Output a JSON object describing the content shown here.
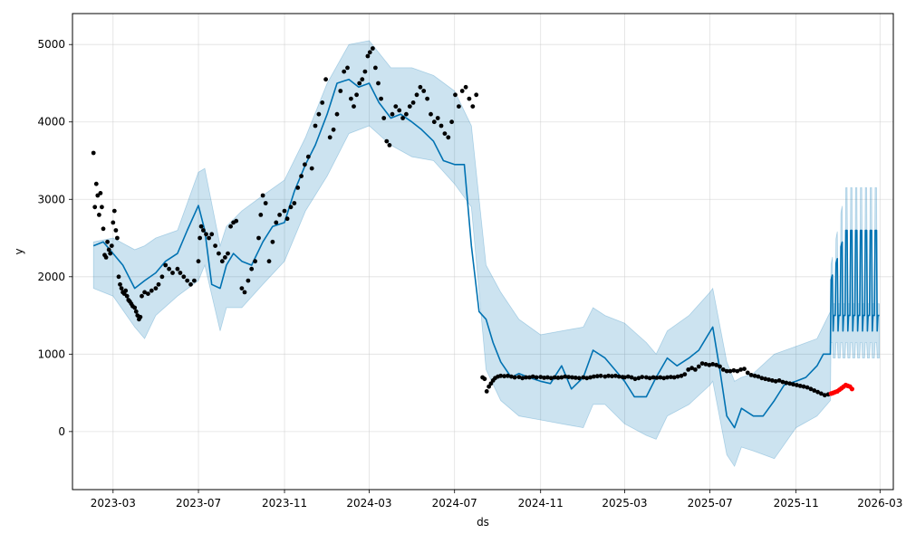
{
  "chart_data": {
    "type": "line",
    "title": "",
    "xlabel": "ds",
    "ylabel": "y",
    "xlim": [
      "2023-01-02",
      "2026-03-20"
    ],
    "ylim": [
      -750,
      5400
    ],
    "grid": true,
    "x_ticks": [
      {
        "date": "2023-03-01",
        "label": "2023-03"
      },
      {
        "date": "2023-07-01",
        "label": "2023-07"
      },
      {
        "date": "2023-11-01",
        "label": "2023-11"
      },
      {
        "date": "2024-03-01",
        "label": "2024-03"
      },
      {
        "date": "2024-07-01",
        "label": "2024-07"
      },
      {
        "date": "2024-11-01",
        "label": "2024-11"
      },
      {
        "date": "2025-03-01",
        "label": "2025-03"
      },
      {
        "date": "2025-07-01",
        "label": "2025-07"
      },
      {
        "date": "2025-11-01",
        "label": "2025-11"
      },
      {
        "date": "2026-03-01",
        "label": "2026-03"
      }
    ],
    "y_ticks": [
      {
        "value": 0,
        "label": "0"
      },
      {
        "value": 1000,
        "label": "1000"
      },
      {
        "value": 2000,
        "label": "2000"
      },
      {
        "value": 3000,
        "label": "3000"
      },
      {
        "value": 4000,
        "label": "4000"
      },
      {
        "value": 5000,
        "label": "5000"
      }
    ],
    "colors": {
      "forecast": "#0072b2",
      "band": "#0072b2",
      "actual": "#000000",
      "test": "#ff0000",
      "grid": "#cccccc"
    },
    "forecast": {
      "x": [
        "2023-02-01",
        "2023-02-15",
        "2023-03-01",
        "2023-03-15",
        "2023-04-01",
        "2023-04-15",
        "2023-05-01",
        "2023-05-15",
        "2023-06-01",
        "2023-06-15",
        "2023-07-01",
        "2023-07-10",
        "2023-07-20",
        "2023-08-01",
        "2023-08-10",
        "2023-08-20",
        "2023-09-01",
        "2023-09-15",
        "2023-10-01",
        "2023-10-15",
        "2023-11-01",
        "2023-11-15",
        "2023-12-01",
        "2023-12-15",
        "2024-01-01",
        "2024-01-15",
        "2024-02-01",
        "2024-02-15",
        "2024-03-01",
        "2024-03-15",
        "2024-04-01",
        "2024-04-15",
        "2024-05-01",
        "2024-05-15",
        "2024-06-01",
        "2024-06-15",
        "2024-07-01",
        "2024-07-15",
        "2024-07-25",
        "2024-08-05",
        "2024-08-15",
        "2024-08-25",
        "2024-09-05",
        "2024-09-20",
        "2024-10-01",
        "2024-10-15",
        "2024-11-01",
        "2024-11-15",
        "2024-12-01",
        "2024-12-15",
        "2025-01-01",
        "2025-01-15",
        "2025-02-01",
        "2025-02-15",
        "2025-03-01",
        "2025-03-15",
        "2025-04-01",
        "2025-04-15",
        "2025-05-01",
        "2025-05-15",
        "2025-06-01",
        "2025-06-15",
        "2025-06-25",
        "2025-07-05",
        "2025-07-15",
        "2025-07-25",
        "2025-08-05",
        "2025-08-15",
        "2025-09-01",
        "2025-09-15",
        "2025-10-01",
        "2025-10-15",
        "2025-11-01",
        "2025-11-15",
        "2025-12-01",
        "2025-12-10",
        "2025-12-20"
      ],
      "y": [
        2400,
        2450,
        2300,
        2150,
        1850,
        1950,
        2050,
        2200,
        2300,
        2600,
        2920,
        2600,
        1900,
        1850,
        2150,
        2300,
        2200,
        2150,
        2450,
        2650,
        2700,
        3100,
        3450,
        3700,
        4100,
        4500,
        4550,
        4450,
        4500,
        4250,
        4050,
        4100,
        4000,
        3900,
        3750,
        3500,
        3450,
        3450,
        2400,
        1550,
        1450,
        1150,
        900,
        700,
        750,
        700,
        650,
        620,
        850,
        550,
        700,
        1050,
        950,
        800,
        650,
        450,
        450,
        700,
        950,
        850,
        950,
        1050,
        1200,
        1350,
        800,
        200,
        50,
        300,
        200,
        200,
        400,
        600,
        650,
        700,
        850,
        1000,
        1000
      ]
    },
    "band": {
      "x": [
        "2023-02-01",
        "2023-03-01",
        "2023-04-01",
        "2023-04-15",
        "2023-05-01",
        "2023-06-01",
        "2023-07-01",
        "2023-07-10",
        "2023-08-01",
        "2023-08-10",
        "2023-09-01",
        "2023-10-01",
        "2023-11-01",
        "2023-12-01",
        "2024-01-01",
        "2024-02-01",
        "2024-03-01",
        "2024-04-01",
        "2024-05-01",
        "2024-06-01",
        "2024-07-01",
        "2024-07-25",
        "2024-08-15",
        "2024-09-05",
        "2024-10-01",
        "2024-11-01",
        "2024-12-01",
        "2025-01-01",
        "2025-01-15",
        "2025-02-01",
        "2025-03-01",
        "2025-04-01",
        "2025-04-15",
        "2025-05-01",
        "2025-06-01",
        "2025-07-01",
        "2025-07-05",
        "2025-07-25",
        "2025-08-05",
        "2025-08-15",
        "2025-09-01",
        "2025-10-01",
        "2025-11-01",
        "2025-12-01",
        "2025-12-20"
      ],
      "lower": [
        1850,
        1750,
        1350,
        1200,
        1500,
        1750,
        1950,
        2150,
        1300,
        1600,
        1600,
        1900,
        2200,
        2850,
        3300,
        3850,
        3950,
        3700,
        3550,
        3500,
        3200,
        2900,
        800,
        400,
        200,
        150,
        100,
        50,
        350,
        350,
        100,
        -50,
        -100,
        200,
        350,
        600,
        650,
        -300,
        -450,
        -200,
        -250,
        -350,
        50,
        200,
        400
      ],
      "upper": [
        2450,
        2500,
        2350,
        2400,
        2500,
        2600,
        3350,
        3400,
        2400,
        2650,
        2850,
        3050,
        3250,
        3800,
        4500,
        5000,
        5050,
        4700,
        4700,
        4600,
        4400,
        3950,
        2150,
        1800,
        1450,
        1250,
        1300,
        1350,
        1600,
        1500,
        1400,
        1150,
        1000,
        1300,
        1500,
        1800,
        1850,
        900,
        650,
        700,
        750,
        1000,
        1100,
        1200,
        1550
      ]
    },
    "forecast_oscillation": {
      "start": "2025-12-21",
      "end": "2026-02-28",
      "low": 1000,
      "high": 2600,
      "band_low": 950,
      "band_high": 3150
    },
    "actual": [
      [
        "2023-02-01",
        3600
      ],
      [
        "2023-02-03",
        2900
      ],
      [
        "2023-02-05",
        3200
      ],
      [
        "2023-02-07",
        3050
      ],
      [
        "2023-02-09",
        2800
      ],
      [
        "2023-02-11",
        3080
      ],
      [
        "2023-02-13",
        2900
      ],
      [
        "2023-02-15",
        2620
      ],
      [
        "2023-02-17",
        2280
      ],
      [
        "2023-02-19",
        2250
      ],
      [
        "2023-02-21",
        2450
      ],
      [
        "2023-02-23",
        2350
      ],
      [
        "2023-02-25",
        2300
      ],
      [
        "2023-02-27",
        2400
      ],
      [
        "2023-03-01",
        2700
      ],
      [
        "2023-03-03",
        2850
      ],
      [
        "2023-03-05",
        2600
      ],
      [
        "2023-03-07",
        2500
      ],
      [
        "2023-03-09",
        2000
      ],
      [
        "2023-03-11",
        1900
      ],
      [
        "2023-03-13",
        1850
      ],
      [
        "2023-03-15",
        1800
      ],
      [
        "2023-03-17",
        1780
      ],
      [
        "2023-03-19",
        1820
      ],
      [
        "2023-03-21",
        1750
      ],
      [
        "2023-03-23",
        1700
      ],
      [
        "2023-03-25",
        1680
      ],
      [
        "2023-03-27",
        1650
      ],
      [
        "2023-03-29",
        1620
      ],
      [
        "2023-04-01",
        1600
      ],
      [
        "2023-04-03",
        1550
      ],
      [
        "2023-04-05",
        1500
      ],
      [
        "2023-04-07",
        1450
      ],
      [
        "2023-04-09",
        1480
      ],
      [
        "2023-04-11",
        1750
      ],
      [
        "2023-04-15",
        1800
      ],
      [
        "2023-04-20",
        1780
      ],
      [
        "2023-04-25",
        1820
      ],
      [
        "2023-05-01",
        1850
      ],
      [
        "2023-05-05",
        1900
      ],
      [
        "2023-05-10",
        2000
      ],
      [
        "2023-05-15",
        2150
      ],
      [
        "2023-05-20",
        2100
      ],
      [
        "2023-05-25",
        2050
      ],
      [
        "2023-06-01",
        2100
      ],
      [
        "2023-06-05",
        2050
      ],
      [
        "2023-06-10",
        2000
      ],
      [
        "2023-06-15",
        1950
      ],
      [
        "2023-06-20",
        1900
      ],
      [
        "2023-06-25",
        1950
      ],
      [
        "2023-07-01",
        2200
      ],
      [
        "2023-07-03",
        2500
      ],
      [
        "2023-07-05",
        2650
      ],
      [
        "2023-07-08",
        2600
      ],
      [
        "2023-07-12",
        2550
      ],
      [
        "2023-07-16",
        2500
      ],
      [
        "2023-07-20",
        2550
      ],
      [
        "2023-07-25",
        2400
      ],
      [
        "2023-07-30",
        2300
      ],
      [
        "2023-08-04",
        2200
      ],
      [
        "2023-08-08",
        2250
      ],
      [
        "2023-08-12",
        2300
      ],
      [
        "2023-08-16",
        2650
      ],
      [
        "2023-08-20",
        2700
      ],
      [
        "2023-08-24",
        2720
      ],
      [
        "2023-09-01",
        1850
      ],
      [
        "2023-09-05",
        1800
      ],
      [
        "2023-09-10",
        1950
      ],
      [
        "2023-09-15",
        2100
      ],
      [
        "2023-09-20",
        2200
      ],
      [
        "2023-09-25",
        2500
      ],
      [
        "2023-09-28",
        2800
      ],
      [
        "2023-10-01",
        3050
      ],
      [
        "2023-10-05",
        2950
      ],
      [
        "2023-10-10",
        2200
      ],
      [
        "2023-10-15",
        2450
      ],
      [
        "2023-10-20",
        2700
      ],
      [
        "2023-10-25",
        2800
      ],
      [
        "2023-11-01",
        2850
      ],
      [
        "2023-11-05",
        2750
      ],
      [
        "2023-11-10",
        2900
      ],
      [
        "2023-11-15",
        2950
      ],
      [
        "2023-11-20",
        3150
      ],
      [
        "2023-11-25",
        3300
      ],
      [
        "2023-11-30",
        3450
      ],
      [
        "2023-12-05",
        3550
      ],
      [
        "2023-12-10",
        3400
      ],
      [
        "2023-12-15",
        3950
      ],
      [
        "2023-12-20",
        4100
      ],
      [
        "2023-12-25",
        4250
      ],
      [
        "2023-12-30",
        4550
      ],
      [
        "2024-01-05",
        3800
      ],
      [
        "2024-01-10",
        3900
      ],
      [
        "2024-01-15",
        4100
      ],
      [
        "2024-01-20",
        4400
      ],
      [
        "2024-01-25",
        4650
      ],
      [
        "2024-01-30",
        4700
      ],
      [
        "2024-02-04",
        4300
      ],
      [
        "2024-02-08",
        4200
      ],
      [
        "2024-02-12",
        4350
      ],
      [
        "2024-02-16",
        4500
      ],
      [
        "2024-02-20",
        4550
      ],
      [
        "2024-02-24",
        4650
      ],
      [
        "2024-02-28",
        4850
      ],
      [
        "2024-03-02",
        4900
      ],
      [
        "2024-03-06",
        4950
      ],
      [
        "2024-03-10",
        4700
      ],
      [
        "2024-03-14",
        4500
      ],
      [
        "2024-03-18",
        4300
      ],
      [
        "2024-03-22",
        4050
      ],
      [
        "2024-03-26",
        3750
      ],
      [
        "2024-03-30",
        3700
      ],
      [
        "2024-04-03",
        4100
      ],
      [
        "2024-04-08",
        4200
      ],
      [
        "2024-04-13",
        4150
      ],
      [
        "2024-04-18",
        4050
      ],
      [
        "2024-04-23",
        4100
      ],
      [
        "2024-04-28",
        4200
      ],
      [
        "2024-05-03",
        4250
      ],
      [
        "2024-05-08",
        4350
      ],
      [
        "2024-05-13",
        4450
      ],
      [
        "2024-05-18",
        4400
      ],
      [
        "2024-05-23",
        4300
      ],
      [
        "2024-05-28",
        4100
      ],
      [
        "2024-06-02",
        4000
      ],
      [
        "2024-06-07",
        4050
      ],
      [
        "2024-06-12",
        3950
      ],
      [
        "2024-06-17",
        3850
      ],
      [
        "2024-06-22",
        3800
      ],
      [
        "2024-06-27",
        4000
      ],
      [
        "2024-07-02",
        4350
      ],
      [
        "2024-07-07",
        4200
      ],
      [
        "2024-07-12",
        4400
      ],
      [
        "2024-07-17",
        4450
      ],
      [
        "2024-07-22",
        4300
      ],
      [
        "2024-07-27",
        4200
      ],
      [
        "2024-08-01",
        4350
      ],
      [
        "2024-08-10",
        700
      ],
      [
        "2024-08-13",
        680
      ],
      [
        "2024-08-16",
        520
      ],
      [
        "2024-08-19",
        580
      ],
      [
        "2024-08-22",
        620
      ],
      [
        "2024-08-25",
        660
      ],
      [
        "2024-08-28",
        690
      ],
      [
        "2024-09-01",
        710
      ],
      [
        "2024-09-05",
        720
      ],
      [
        "2024-09-10",
        715
      ],
      [
        "2024-09-15",
        720
      ],
      [
        "2024-09-20",
        710
      ],
      [
        "2024-09-25",
        700
      ],
      [
        "2024-10-01",
        705
      ],
      [
        "2024-10-06",
        690
      ],
      [
        "2024-10-11",
        700
      ],
      [
        "2024-10-16",
        700
      ],
      [
        "2024-10-21",
        710
      ],
      [
        "2024-10-26",
        700
      ],
      [
        "2024-11-01",
        705
      ],
      [
        "2024-11-06",
        695
      ],
      [
        "2024-11-11",
        700
      ],
      [
        "2024-11-16",
        690
      ],
      [
        "2024-11-21",
        700
      ],
      [
        "2024-11-26",
        695
      ],
      [
        "2024-12-01",
        700
      ],
      [
        "2024-12-06",
        710
      ],
      [
        "2024-12-11",
        705
      ],
      [
        "2024-12-16",
        700
      ],
      [
        "2024-12-21",
        695
      ],
      [
        "2024-12-26",
        690
      ],
      [
        "2025-01-01",
        700
      ],
      [
        "2025-01-06",
        690
      ],
      [
        "2025-01-11",
        700
      ],
      [
        "2025-01-16",
        710
      ],
      [
        "2025-01-21",
        715
      ],
      [
        "2025-01-26",
        720
      ],
      [
        "2025-02-01",
        710
      ],
      [
        "2025-02-06",
        720
      ],
      [
        "2025-02-11",
        715
      ],
      [
        "2025-02-16",
        720
      ],
      [
        "2025-02-21",
        710
      ],
      [
        "2025-02-26",
        705
      ],
      [
        "2025-03-01",
        700
      ],
      [
        "2025-03-06",
        710
      ],
      [
        "2025-03-11",
        700
      ],
      [
        "2025-03-16",
        680
      ],
      [
        "2025-03-21",
        690
      ],
      [
        "2025-03-26",
        705
      ],
      [
        "2025-04-01",
        700
      ],
      [
        "2025-04-06",
        690
      ],
      [
        "2025-04-11",
        700
      ],
      [
        "2025-04-16",
        695
      ],
      [
        "2025-04-21",
        700
      ],
      [
        "2025-04-26",
        690
      ],
      [
        "2025-05-01",
        700
      ],
      [
        "2025-05-06",
        705
      ],
      [
        "2025-05-11",
        700
      ],
      [
        "2025-05-16",
        710
      ],
      [
        "2025-05-21",
        720
      ],
      [
        "2025-05-26",
        740
      ],
      [
        "2025-05-31",
        800
      ],
      [
        "2025-06-05",
        820
      ],
      [
        "2025-06-10",
        800
      ],
      [
        "2025-06-15",
        840
      ],
      [
        "2025-06-20",
        880
      ],
      [
        "2025-06-25",
        870
      ],
      [
        "2025-06-30",
        860
      ],
      [
        "2025-07-05",
        870
      ],
      [
        "2025-07-10",
        860
      ],
      [
        "2025-07-15",
        840
      ],
      [
        "2025-07-20",
        800
      ],
      [
        "2025-07-25",
        780
      ],
      [
        "2025-07-30",
        780
      ],
      [
        "2025-08-04",
        790
      ],
      [
        "2025-08-09",
        780
      ],
      [
        "2025-08-14",
        800
      ],
      [
        "2025-08-19",
        810
      ],
      [
        "2025-08-24",
        760
      ],
      [
        "2025-08-29",
        730
      ],
      [
        "2025-09-03",
        720
      ],
      [
        "2025-09-08",
        710
      ],
      [
        "2025-09-13",
        690
      ],
      [
        "2025-09-18",
        680
      ],
      [
        "2025-09-23",
        670
      ],
      [
        "2025-09-28",
        660
      ],
      [
        "2025-10-03",
        650
      ],
      [
        "2025-10-08",
        660
      ],
      [
        "2025-10-13",
        640
      ],
      [
        "2025-10-18",
        630
      ],
      [
        "2025-10-23",
        620
      ],
      [
        "2025-10-28",
        610
      ],
      [
        "2025-11-02",
        600
      ],
      [
        "2025-11-07",
        590
      ],
      [
        "2025-11-12",
        580
      ],
      [
        "2025-11-17",
        570
      ],
      [
        "2025-11-22",
        550
      ],
      [
        "2025-11-27",
        530
      ],
      [
        "2025-12-02",
        510
      ],
      [
        "2025-12-07",
        490
      ],
      [
        "2025-12-12",
        470
      ],
      [
        "2025-12-17",
        480
      ]
    ],
    "test": [
      [
        "2025-12-21",
        490
      ],
      [
        "2025-12-24",
        500
      ],
      [
        "2025-12-27",
        510
      ],
      [
        "2025-12-30",
        520
      ],
      [
        "2026-01-02",
        540
      ],
      [
        "2026-01-05",
        560
      ],
      [
        "2026-01-08",
        580
      ],
      [
        "2026-01-11",
        600
      ],
      [
        "2026-01-14",
        590
      ],
      [
        "2026-01-17",
        580
      ],
      [
        "2026-01-20",
        550
      ]
    ]
  }
}
